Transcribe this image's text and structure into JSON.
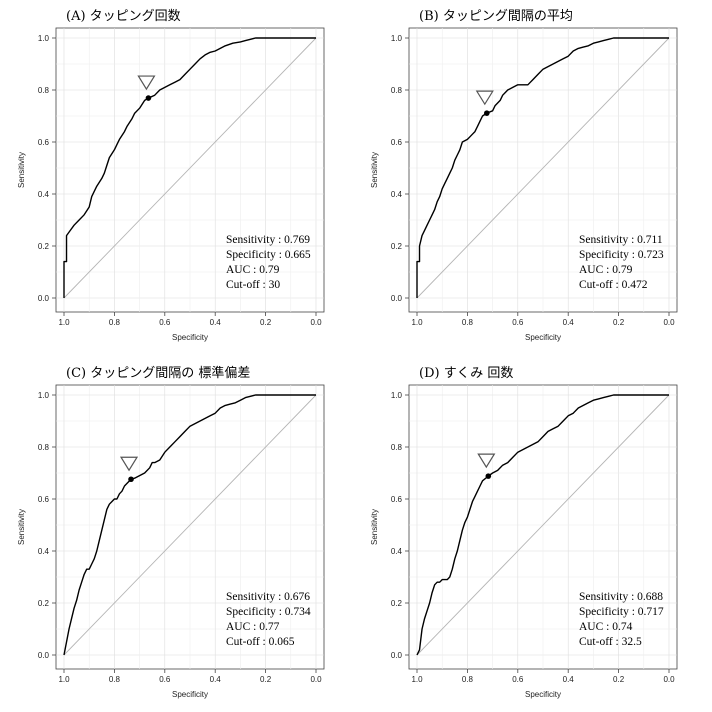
{
  "chart_data": [
    {
      "type": "line",
      "title": "(A) タッピング回数",
      "xlabel": "Specificity",
      "ylabel": "Sensitivity",
      "xlim": [
        1.0,
        0.0
      ],
      "ylim": [
        0.0,
        1.0
      ],
      "xticks": [
        "1.0",
        "0.8",
        "0.6",
        "0.4",
        "0.2",
        "0.0"
      ],
      "yticks": [
        "0.0",
        "0.2",
        "0.4",
        "0.6",
        "0.8",
        "1.0"
      ],
      "grid": true,
      "stats": [
        "Sensitivity : 0.769",
        "Specificity : 0.665",
        "AUC : 0.79",
        "Cut-off : 30"
      ],
      "cutoff_point": {
        "specificity": 0.665,
        "sensitivity": 0.769
      },
      "diagonal": {
        "x": [
          1.0,
          0.0
        ],
        "y": [
          0.0,
          1.0
        ]
      },
      "series": [
        {
          "x": [
            1.0,
            1.0,
            0.99,
            0.99,
            0.975,
            0.96,
            0.94,
            0.92,
            0.9,
            0.89,
            0.87,
            0.85,
            0.84,
            0.83,
            0.82,
            0.8,
            0.79,
            0.78,
            0.76,
            0.75,
            0.73,
            0.72,
            0.7,
            0.68,
            0.665,
            0.64,
            0.62,
            0.6,
            0.58,
            0.56,
            0.54,
            0.52,
            0.5,
            0.48,
            0.46,
            0.44,
            0.42,
            0.4,
            0.38,
            0.36,
            0.33,
            0.3,
            0.28,
            0.26,
            0.24,
            0.22,
            0.2,
            0.1,
            0.0
          ],
          "y": [
            0.0,
            0.14,
            0.14,
            0.24,
            0.26,
            0.28,
            0.3,
            0.32,
            0.35,
            0.39,
            0.43,
            0.46,
            0.48,
            0.51,
            0.54,
            0.57,
            0.59,
            0.61,
            0.64,
            0.66,
            0.69,
            0.71,
            0.73,
            0.76,
            0.769,
            0.78,
            0.8,
            0.81,
            0.82,
            0.83,
            0.84,
            0.86,
            0.88,
            0.9,
            0.92,
            0.935,
            0.945,
            0.95,
            0.96,
            0.97,
            0.98,
            0.985,
            0.99,
            0.995,
            1.0,
            1.0,
            1.0,
            1.0,
            1.0
          ]
        }
      ]
    },
    {
      "type": "line",
      "title": "(B) タッピング間隔の平均",
      "xlabel": "Specificity",
      "ylabel": "Sensitivity",
      "xlim": [
        1.0,
        0.0
      ],
      "ylim": [
        0.0,
        1.0
      ],
      "xticks": [
        "1.0",
        "0.8",
        "0.6",
        "0.4",
        "0.2",
        "0.0"
      ],
      "yticks": [
        "0.0",
        "0.2",
        "0.4",
        "0.6",
        "0.8",
        "1.0"
      ],
      "grid": true,
      "stats": [
        "Sensitivity : 0.711",
        "Specificity : 0.723",
        "AUC : 0.79",
        "Cut-off : 0.472"
      ],
      "cutoff_point": {
        "specificity": 0.723,
        "sensitivity": 0.711
      },
      "diagonal": {
        "x": [
          1.0,
          0.0
        ],
        "y": [
          0.0,
          1.0
        ]
      },
      "series": [
        {
          "x": [
            1.0,
            1.0,
            0.99,
            0.99,
            0.98,
            0.97,
            0.96,
            0.95,
            0.94,
            0.93,
            0.92,
            0.91,
            0.9,
            0.89,
            0.88,
            0.87,
            0.86,
            0.85,
            0.84,
            0.83,
            0.82,
            0.8,
            0.79,
            0.78,
            0.77,
            0.76,
            0.75,
            0.74,
            0.723,
            0.7,
            0.69,
            0.68,
            0.67,
            0.66,
            0.65,
            0.64,
            0.62,
            0.6,
            0.58,
            0.56,
            0.55,
            0.54,
            0.52,
            0.5,
            0.48,
            0.46,
            0.44,
            0.42,
            0.4,
            0.38,
            0.36,
            0.34,
            0.32,
            0.3,
            0.28,
            0.26,
            0.24,
            0.22,
            0.2,
            0.1,
            0.0
          ],
          "y": [
            0.0,
            0.14,
            0.14,
            0.2,
            0.24,
            0.26,
            0.28,
            0.3,
            0.32,
            0.34,
            0.37,
            0.39,
            0.42,
            0.44,
            0.46,
            0.48,
            0.5,
            0.53,
            0.55,
            0.57,
            0.6,
            0.61,
            0.62,
            0.63,
            0.64,
            0.66,
            0.68,
            0.7,
            0.711,
            0.72,
            0.74,
            0.75,
            0.76,
            0.78,
            0.79,
            0.8,
            0.81,
            0.82,
            0.82,
            0.82,
            0.83,
            0.84,
            0.86,
            0.88,
            0.89,
            0.9,
            0.91,
            0.92,
            0.93,
            0.95,
            0.96,
            0.965,
            0.97,
            0.98,
            0.985,
            0.99,
            0.995,
            1.0,
            1.0,
            1.0,
            1.0
          ]
        }
      ]
    },
    {
      "type": "line",
      "title": "(C) タッピング間隔の 標準偏差",
      "xlabel": "Specificity",
      "ylabel": "Sensitivity",
      "xlim": [
        1.0,
        0.0
      ],
      "ylim": [
        0.0,
        1.0
      ],
      "xticks": [
        "1.0",
        "0.8",
        "0.6",
        "0.4",
        "0.2",
        "0.0"
      ],
      "yticks": [
        "0.0",
        "0.2",
        "0.4",
        "0.6",
        "0.8",
        "1.0"
      ],
      "grid": true,
      "stats": [
        "Sensitivity : 0.676",
        "Specificity : 0.734",
        "AUC : 0.77",
        "Cut-off : 0.065"
      ],
      "cutoff_point": {
        "specificity": 0.734,
        "sensitivity": 0.676
      },
      "diagonal": {
        "x": [
          1.0,
          0.0
        ],
        "y": [
          0.0,
          1.0
        ]
      },
      "series": [
        {
          "x": [
            1.0,
            0.99,
            0.98,
            0.97,
            0.96,
            0.95,
            0.94,
            0.93,
            0.92,
            0.91,
            0.9,
            0.89,
            0.88,
            0.87,
            0.86,
            0.85,
            0.84,
            0.83,
            0.82,
            0.81,
            0.8,
            0.79,
            0.78,
            0.77,
            0.76,
            0.75,
            0.734,
            0.72,
            0.7,
            0.68,
            0.66,
            0.65,
            0.64,
            0.62,
            0.6,
            0.58,
            0.56,
            0.54,
            0.52,
            0.5,
            0.48,
            0.46,
            0.44,
            0.42,
            0.4,
            0.38,
            0.36,
            0.34,
            0.32,
            0.3,
            0.28,
            0.26,
            0.24,
            0.22,
            0.2,
            0.1,
            0.0
          ],
          "y": [
            0.0,
            0.05,
            0.1,
            0.14,
            0.18,
            0.21,
            0.25,
            0.28,
            0.31,
            0.33,
            0.33,
            0.35,
            0.37,
            0.4,
            0.44,
            0.48,
            0.52,
            0.56,
            0.58,
            0.59,
            0.6,
            0.6,
            0.62,
            0.63,
            0.65,
            0.66,
            0.676,
            0.68,
            0.69,
            0.7,
            0.72,
            0.74,
            0.74,
            0.75,
            0.78,
            0.8,
            0.82,
            0.84,
            0.86,
            0.88,
            0.89,
            0.9,
            0.91,
            0.92,
            0.93,
            0.95,
            0.96,
            0.965,
            0.97,
            0.98,
            0.99,
            0.995,
            1.0,
            1.0,
            1.0,
            1.0,
            1.0
          ]
        }
      ]
    },
    {
      "type": "line",
      "title": "(D) すくみ 回数",
      "xlabel": "Specificity",
      "ylabel": "Sensitivity",
      "xlim": [
        1.0,
        0.0
      ],
      "ylim": [
        0.0,
        1.0
      ],
      "xticks": [
        "1.0",
        "0.8",
        "0.6",
        "0.4",
        "0.2",
        "0.0"
      ],
      "yticks": [
        "0.0",
        "0.2",
        "0.4",
        "0.6",
        "0.8",
        "1.0"
      ],
      "grid": true,
      "stats": [
        "Sensitivity : 0.688",
        "Specificity : 0.717",
        "AUC : 0.74",
        "Cut-off : 32.5"
      ],
      "cutoff_point": {
        "specificity": 0.717,
        "sensitivity": 0.688
      },
      "diagonal": {
        "x": [
          1.0,
          0.0
        ],
        "y": [
          0.0,
          1.0
        ]
      },
      "series": [
        {
          "x": [
            1.0,
            0.99,
            0.98,
            0.97,
            0.96,
            0.95,
            0.94,
            0.93,
            0.92,
            0.91,
            0.9,
            0.88,
            0.87,
            0.86,
            0.85,
            0.84,
            0.83,
            0.82,
            0.81,
            0.8,
            0.79,
            0.78,
            0.77,
            0.76,
            0.75,
            0.74,
            0.717,
            0.7,
            0.68,
            0.66,
            0.64,
            0.62,
            0.6,
            0.58,
            0.56,
            0.54,
            0.52,
            0.5,
            0.48,
            0.46,
            0.44,
            0.42,
            0.4,
            0.38,
            0.36,
            0.34,
            0.32,
            0.3,
            0.28,
            0.26,
            0.24,
            0.22,
            0.2,
            0.1,
            0.0
          ],
          "y": [
            0.0,
            0.02,
            0.1,
            0.14,
            0.17,
            0.2,
            0.24,
            0.27,
            0.28,
            0.28,
            0.29,
            0.29,
            0.3,
            0.33,
            0.37,
            0.4,
            0.44,
            0.48,
            0.51,
            0.53,
            0.56,
            0.59,
            0.61,
            0.63,
            0.65,
            0.67,
            0.688,
            0.7,
            0.71,
            0.73,
            0.74,
            0.76,
            0.78,
            0.79,
            0.8,
            0.81,
            0.82,
            0.84,
            0.86,
            0.87,
            0.88,
            0.9,
            0.92,
            0.93,
            0.95,
            0.96,
            0.97,
            0.98,
            0.985,
            0.99,
            0.995,
            1.0,
            1.0,
            1.0,
            1.0
          ]
        }
      ]
    }
  ]
}
